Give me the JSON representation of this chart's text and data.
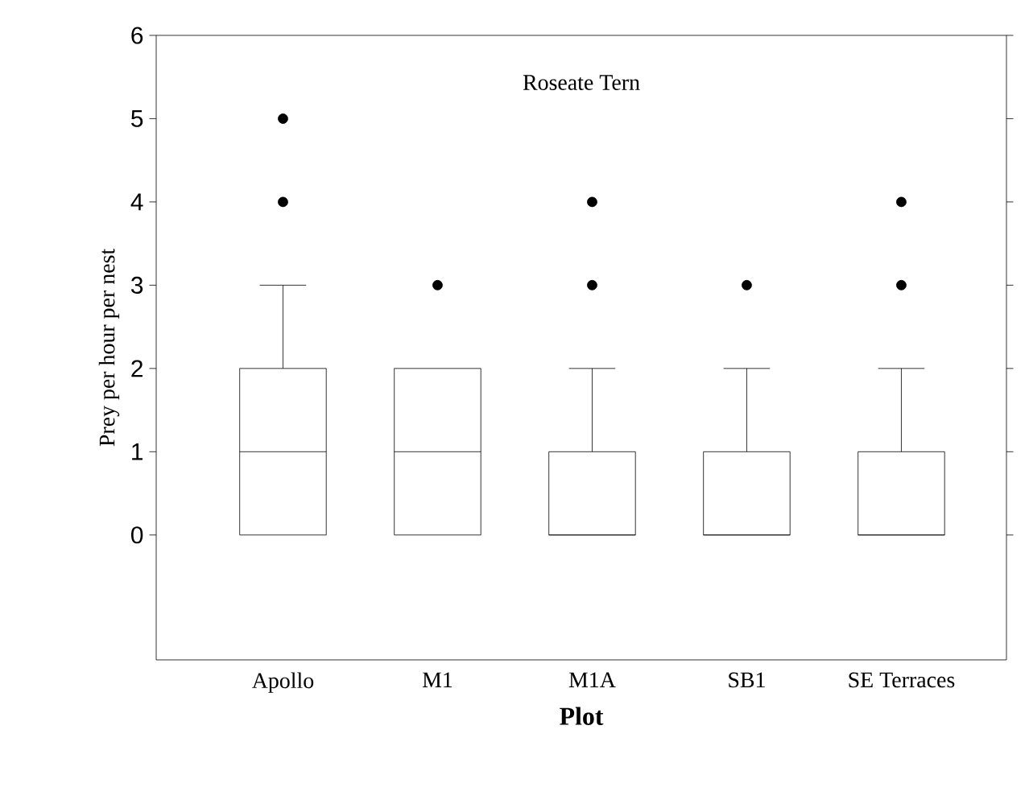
{
  "chart_data": {
    "type": "box",
    "title": "Roseate Tern",
    "xlabel": "Plot",
    "ylabel": "Prey per hour per nest",
    "categories": [
      "Apollo",
      "M1",
      "M1A",
      "SB1",
      "SE Terraces"
    ],
    "boxes": [
      {
        "low": 0,
        "q1": 0,
        "median": 1,
        "q3": 2,
        "high": 3,
        "outliers": [
          4,
          5
        ]
      },
      {
        "low": 0,
        "q1": 0,
        "median": 1,
        "q3": 2,
        "high": 2,
        "outliers": [
          3
        ]
      },
      {
        "low": 0,
        "q1": 0,
        "median": 0,
        "q3": 1,
        "high": 2,
        "outliers": [
          3,
          4
        ]
      },
      {
        "low": 0,
        "q1": 0,
        "median": 0,
        "q3": 1,
        "high": 2,
        "outliers": [
          3
        ]
      },
      {
        "low": 0,
        "q1": 0,
        "median": 0,
        "q3": 1,
        "high": 2,
        "outliers": [
          3,
          4
        ]
      }
    ],
    "ylim": [
      -1.5,
      6
    ],
    "yticks": [
      0,
      1,
      2,
      3,
      4,
      5,
      6
    ],
    "marker": "circle"
  }
}
